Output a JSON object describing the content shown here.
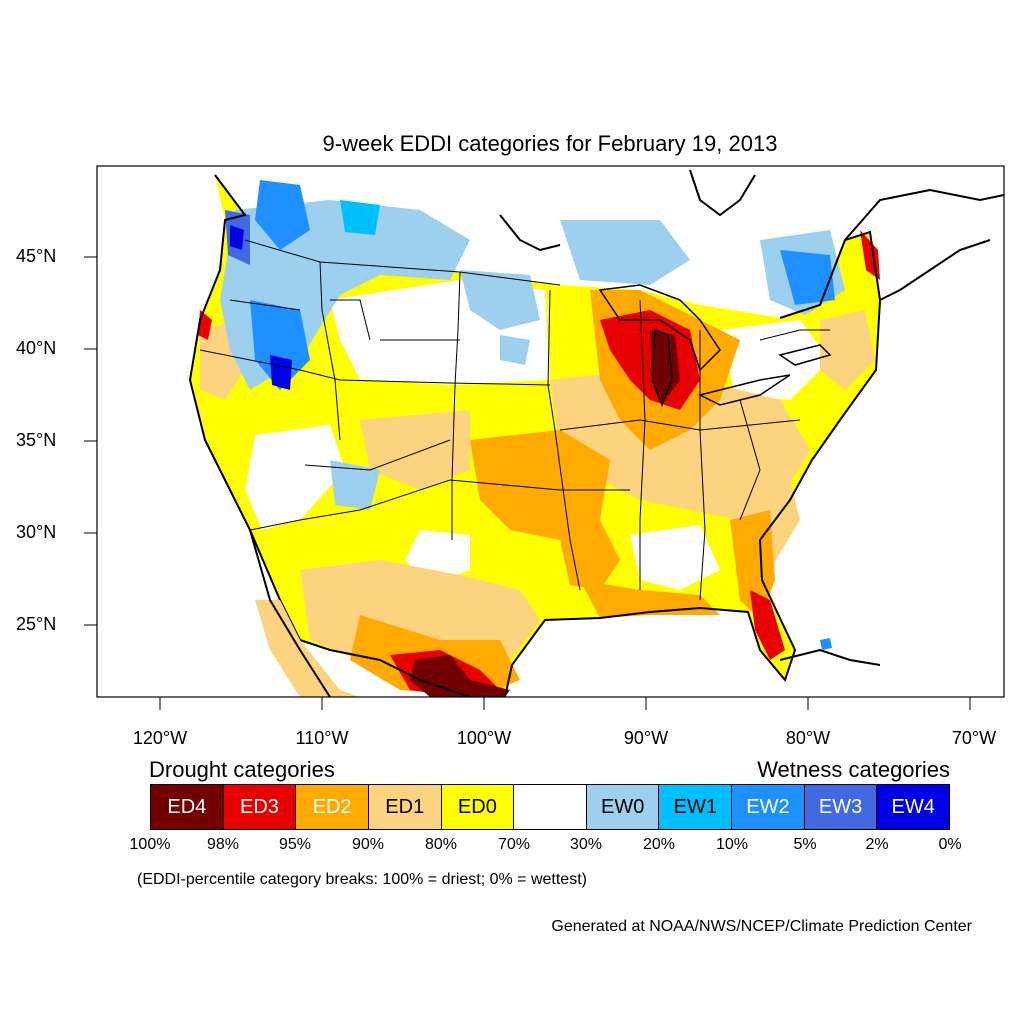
{
  "title": "9-week EDDI categories for February 19, 2013",
  "lat_labels": [
    "45°N",
    "40°N",
    "35°N",
    "30°N",
    "25°N"
  ],
  "lon_labels": [
    "120°W",
    "110°W",
    "100°W",
    "90°W",
    "80°W",
    "70°W"
  ],
  "drought_heading": "Drought categories",
  "wetness_heading": "Wetness categories",
  "legend": [
    {
      "label": "ED4",
      "color": "#730000",
      "text_color": "#ffffff"
    },
    {
      "label": "ED3",
      "color": "#e60000",
      "text_color": "#ffffff"
    },
    {
      "label": "ED2",
      "color": "#ffaa00",
      "text_color": "#ffffff"
    },
    {
      "label": "ED1",
      "color": "#fcd37f",
      "text_color": "#000000"
    },
    {
      "label": "ED0",
      "color": "#ffff00",
      "text_color": "#000000"
    },
    {
      "label": "",
      "color": "#ffffff",
      "text_color": "#000000"
    },
    {
      "label": "EW0",
      "color": "#9dcfef",
      "text_color": "#000000"
    },
    {
      "label": "EW1",
      "color": "#00bfff",
      "text_color": "#000000"
    },
    {
      "label": "EW2",
      "color": "#1e90ff",
      "text_color": "#ffffff"
    },
    {
      "label": "EW3",
      "color": "#4169e1",
      "text_color": "#ffffff"
    },
    {
      "label": "EW4",
      "color": "#0000e6",
      "text_color": "#ffffff"
    }
  ],
  "percent_breaks": [
    "100%",
    "98%",
    "95%",
    "90%",
    "80%",
    "70%",
    "30%",
    "20%",
    "10%",
    "5%",
    "2%",
    "0%"
  ],
  "note": "(EDDI-percentile category breaks: 100% = driest; 0% = wettest)",
  "credit": "Generated at NOAA/NWS/NCEP/Climate Prediction Center"
}
